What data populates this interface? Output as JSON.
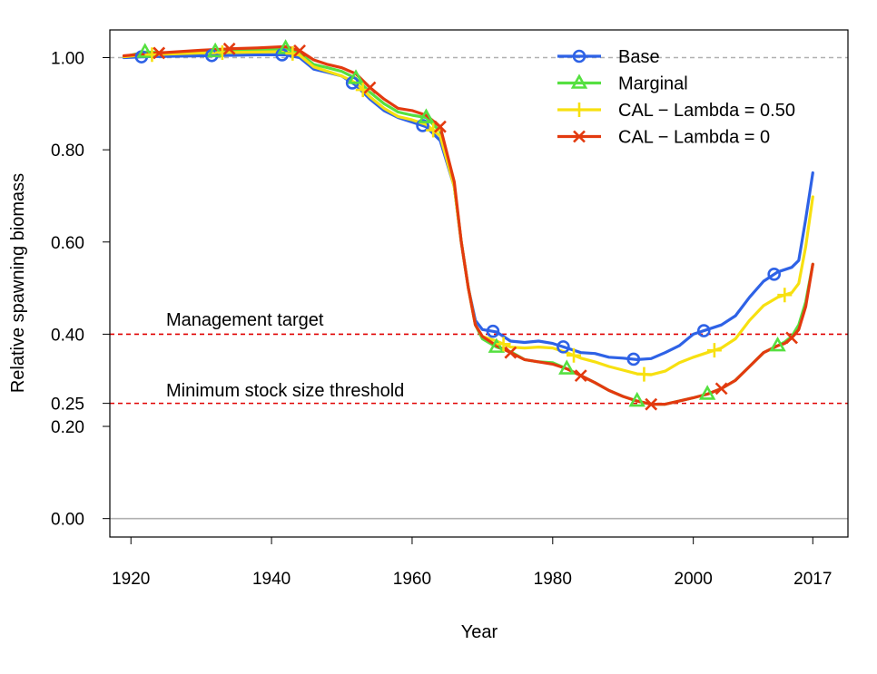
{
  "chart_data": {
    "type": "line",
    "title": "",
    "xlabel": "Year",
    "ylabel": "Relative spawning biomass",
    "xlim": [
      1917,
      2022
    ],
    "ylim": [
      -0.04,
      1.06
    ],
    "xticks": [
      1920,
      1940,
      1960,
      1980,
      2000,
      2017
    ],
    "xtick_labels": [
      "1920",
      "1940",
      "1960",
      "1980",
      "2000",
      "2017"
    ],
    "yticks": [
      0.0,
      0.2,
      0.25,
      0.4,
      0.6,
      0.8,
      1.0
    ],
    "ytick_labels": [
      "0.00",
      "0.20",
      "0.25",
      "0.40",
      "0.60",
      "0.80",
      "1.00"
    ],
    "grid": false,
    "legend_position": "top-right",
    "reference_lines": [
      {
        "y": 1.0,
        "color": "#b0b0b0",
        "style": "dashed",
        "label": ""
      },
      {
        "y": 0.4,
        "color": "#e00000",
        "style": "dashed",
        "label": "Management target"
      },
      {
        "y": 0.25,
        "color": "#e00000",
        "style": "dashed",
        "label": "Minimum stock size threshold"
      },
      {
        "y": 0.0,
        "color": "#b0b0b0",
        "style": "solid",
        "label": ""
      }
    ],
    "series": [
      {
        "name": "Base",
        "color": "#2e62e6",
        "marker": "circle",
        "x": [
          1919,
          1922,
          1926,
          1930,
          1934,
          1938,
          1942,
          1944,
          1946,
          1948,
          1950,
          1952,
          1954,
          1956,
          1958,
          1960,
          1962,
          1964,
          1966,
          1967,
          1968,
          1969,
          1970,
          1972,
          1974,
          1976,
          1978,
          1980,
          1982,
          1984,
          1986,
          1988,
          1990,
          1992,
          1994,
          1996,
          1998,
          2000,
          2002,
          2004,
          2006,
          2008,
          2010,
          2012,
          2014,
          2015,
          2016,
          2017
        ],
        "y": [
          1.0,
          1.002,
          1.003,
          1.004,
          1.005,
          1.006,
          1.006,
          1.0,
          0.975,
          0.968,
          0.96,
          0.94,
          0.91,
          0.885,
          0.87,
          0.86,
          0.85,
          0.82,
          0.72,
          0.6,
          0.5,
          0.43,
          0.41,
          0.405,
          0.385,
          0.382,
          0.385,
          0.38,
          0.37,
          0.36,
          0.358,
          0.35,
          0.348,
          0.345,
          0.347,
          0.36,
          0.375,
          0.4,
          0.41,
          0.42,
          0.44,
          0.48,
          0.515,
          0.535,
          0.545,
          0.56,
          0.65,
          0.75
        ],
        "marker_x": [
          1921.5,
          1931.5,
          1941.5,
          1951.5,
          1961.5,
          1971.5,
          1981.5,
          1991.5,
          2001.5,
          2011.5
        ]
      },
      {
        "name": "Marginal",
        "color": "#55e040",
        "marker": "triangle",
        "x": [
          1919,
          1922,
          1926,
          1930,
          1934,
          1938,
          1942,
          1944,
          1946,
          1948,
          1950,
          1952,
          1954,
          1956,
          1958,
          1960,
          1962,
          1964,
          1966,
          1967,
          1968,
          1969,
          1970,
          1972,
          1974,
          1976,
          1978,
          1980,
          1982,
          1984,
          1986,
          1988,
          1990,
          1992,
          1994,
          1996,
          1998,
          2000,
          2002,
          2004,
          2006,
          2008,
          2010,
          2012,
          2013,
          2014,
          2015,
          2016,
          2017
        ],
        "y": [
          1.002,
          1.012,
          1.01,
          1.012,
          1.014,
          1.016,
          1.02,
          1.01,
          0.985,
          0.978,
          0.97,
          0.955,
          0.925,
          0.9,
          0.882,
          0.875,
          0.87,
          0.84,
          0.72,
          0.6,
          0.5,
          0.42,
          0.39,
          0.372,
          0.362,
          0.345,
          0.34,
          0.338,
          0.325,
          0.31,
          0.295,
          0.278,
          0.265,
          0.255,
          0.248,
          0.248,
          0.255,
          0.262,
          0.27,
          0.282,
          0.3,
          0.33,
          0.36,
          0.375,
          0.383,
          0.395,
          0.42,
          0.47,
          0.552
        ],
        "marker_x": [
          1922,
          1932,
          1942,
          1952,
          1962,
          1972,
          1982,
          1992,
          2002,
          2012
        ]
      },
      {
        "name": "CAL − Lambda = 0.50",
        "color": "#f7e010",
        "marker": "plus",
        "x": [
          1919,
          1922,
          1926,
          1930,
          1934,
          1938,
          1942,
          1944,
          1946,
          1948,
          1950,
          1952,
          1954,
          1956,
          1958,
          1960,
          1962,
          1964,
          1966,
          1967,
          1968,
          1969,
          1970,
          1972,
          1974,
          1976,
          1978,
          1980,
          1982,
          1984,
          1986,
          1988,
          1990,
          1992,
          1994,
          1996,
          1998,
          2000,
          2002,
          2004,
          2006,
          2008,
          2010,
          2012,
          2014,
          2015,
          2016,
          2017
        ],
        "y": [
          1.002,
          1.006,
          1.008,
          1.01,
          1.011,
          1.012,
          1.013,
          1.005,
          0.98,
          0.97,
          0.96,
          0.945,
          0.915,
          0.89,
          0.872,
          0.865,
          0.855,
          0.83,
          0.72,
          0.6,
          0.5,
          0.42,
          0.395,
          0.385,
          0.372,
          0.37,
          0.372,
          0.37,
          0.36,
          0.348,
          0.34,
          0.33,
          0.322,
          0.314,
          0.312,
          0.32,
          0.338,
          0.35,
          0.36,
          0.37,
          0.39,
          0.43,
          0.462,
          0.48,
          0.49,
          0.51,
          0.59,
          0.698
        ],
        "marker_x": [
          1923,
          1933,
          1943,
          1953,
          1963,
          1973,
          1983,
          1993,
          2003,
          2013
        ]
      },
      {
        "name": "CAL − Lambda = 0",
        "color": "#e33a0f",
        "marker": "x",
        "x": [
          1919,
          1922,
          1926,
          1930,
          1934,
          1938,
          1942,
          1944,
          1946,
          1948,
          1950,
          1952,
          1954,
          1956,
          1958,
          1960,
          1962,
          1964,
          1966,
          1967,
          1968,
          1969,
          1970,
          1972,
          1974,
          1976,
          1978,
          1980,
          1982,
          1984,
          1986,
          1988,
          1990,
          1992,
          1994,
          1996,
          1998,
          2000,
          2002,
          2004,
          2006,
          2008,
          2010,
          2012,
          2013,
          2014,
          2015,
          2016,
          2017
        ],
        "y": [
          1.004,
          1.008,
          1.012,
          1.016,
          1.019,
          1.021,
          1.024,
          1.015,
          0.995,
          0.985,
          0.978,
          0.965,
          0.935,
          0.91,
          0.89,
          0.885,
          0.875,
          0.85,
          0.73,
          0.6,
          0.5,
          0.42,
          0.395,
          0.375,
          0.36,
          0.345,
          0.34,
          0.335,
          0.325,
          0.31,
          0.295,
          0.278,
          0.265,
          0.255,
          0.248,
          0.248,
          0.255,
          0.262,
          0.27,
          0.282,
          0.3,
          0.33,
          0.36,
          0.375,
          0.38,
          0.392,
          0.41,
          0.46,
          0.552
        ],
        "marker_x": [
          1924,
          1934,
          1944,
          1954,
          1964,
          1974,
          1984,
          1994,
          2004,
          2014
        ]
      }
    ]
  }
}
